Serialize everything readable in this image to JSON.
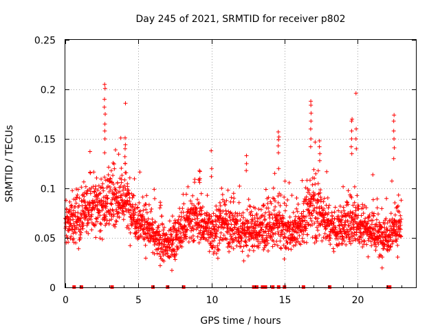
{
  "chart_data": {
    "type": "scatter",
    "title": "Day 245 of 2021, SRMTID for receiver p802",
    "xlabel": "GPS time / hours",
    "ylabel": "SRMTID / TECUs",
    "xlim": [
      0,
      24
    ],
    "ylim": [
      0,
      0.25
    ],
    "xticks": [
      0,
      5,
      10,
      15,
      20
    ],
    "xtick_labels": [
      "0",
      "5",
      "10",
      "15",
      "20"
    ],
    "yticks": [
      0,
      0.05,
      0.1,
      0.15,
      0.2,
      0.25
    ],
    "ytick_labels": [
      "0",
      "0.05",
      "0.1",
      "0.15",
      "0.2",
      "0.25"
    ],
    "grid": true,
    "marker": "plus",
    "series_color": "#ff0000",
    "x_range_of_points": [
      0,
      23
    ],
    "density_profile": [
      [
        0.0,
        0.065,
        0.017
      ],
      [
        1.0,
        0.07,
        0.017
      ],
      [
        1.5,
        0.077,
        0.016
      ],
      [
        2.0,
        0.083,
        0.018
      ],
      [
        2.5,
        0.085,
        0.02
      ],
      [
        3.0,
        0.087,
        0.022
      ],
      [
        3.5,
        0.09,
        0.018
      ],
      [
        4.0,
        0.09,
        0.02
      ],
      [
        4.5,
        0.08,
        0.018
      ],
      [
        5.0,
        0.068,
        0.016
      ],
      [
        5.5,
        0.062,
        0.016
      ],
      [
        6.0,
        0.052,
        0.014
      ],
      [
        6.5,
        0.045,
        0.013
      ],
      [
        7.0,
        0.042,
        0.012
      ],
      [
        7.5,
        0.05,
        0.014
      ],
      [
        8.0,
        0.058,
        0.016
      ],
      [
        8.5,
        0.065,
        0.016
      ],
      [
        9.0,
        0.07,
        0.016
      ],
      [
        9.5,
        0.062,
        0.015
      ],
      [
        10.0,
        0.058,
        0.016
      ],
      [
        10.5,
        0.06,
        0.016
      ],
      [
        11.0,
        0.064,
        0.016
      ],
      [
        11.5,
        0.06,
        0.016
      ],
      [
        12.0,
        0.055,
        0.015
      ],
      [
        12.5,
        0.058,
        0.015
      ],
      [
        13.0,
        0.058,
        0.015
      ],
      [
        14.0,
        0.06,
        0.016
      ],
      [
        14.5,
        0.065,
        0.02
      ],
      [
        15.5,
        0.055,
        0.012
      ],
      [
        16.0,
        0.06,
        0.014
      ],
      [
        16.5,
        0.072,
        0.018
      ],
      [
        17.0,
        0.085,
        0.022
      ],
      [
        17.5,
        0.075,
        0.02
      ],
      [
        18.0,
        0.065,
        0.016
      ],
      [
        18.5,
        0.06,
        0.014
      ],
      [
        19.0,
        0.06,
        0.015
      ],
      [
        19.5,
        0.07,
        0.02
      ],
      [
        20.0,
        0.068,
        0.018
      ],
      [
        20.5,
        0.062,
        0.016
      ],
      [
        21.0,
        0.058,
        0.016
      ],
      [
        21.5,
        0.05,
        0.015
      ],
      [
        22.0,
        0.055,
        0.015
      ],
      [
        22.5,
        0.06,
        0.015
      ],
      [
        23.0,
        0.062,
        0.015
      ]
    ],
    "spikes": [
      {
        "x": 2.7,
        "values": [
          0.205,
          0.201,
          0.19,
          0.182,
          0.175,
          0.165,
          0.158,
          0.15,
          0.136
        ]
      },
      {
        "x": 4.1,
        "values": [
          0.186,
          0.151,
          0.144,
          0.14,
          0.132,
          0.125
        ]
      },
      {
        "x": 14.6,
        "values": [
          0.157,
          0.152,
          0.149,
          0.143,
          0.136,
          0.12
        ]
      },
      {
        "x": 16.8,
        "values": [
          0.188,
          0.184,
          0.176,
          0.168,
          0.16,
          0.15,
          0.142
        ]
      },
      {
        "x": 19.6,
        "values": [
          0.17,
          0.168,
          0.158,
          0.15,
          0.142,
          0.135
        ]
      },
      {
        "x": 19.9,
        "values": [
          0.196,
          0.16,
          0.15,
          0.14
        ]
      },
      {
        "x": 22.5,
        "values": [
          0.174,
          0.168,
          0.158,
          0.15,
          0.141,
          0.13
        ]
      },
      {
        "x": 9.2,
        "values": [
          0.118,
          0.117,
          0.11,
          0.106
        ]
      },
      {
        "x": 10.0,
        "values": [
          0.138,
          0.12,
          0.112
        ]
      },
      {
        "x": 12.4,
        "values": [
          0.133,
          0.125,
          0.118
        ]
      },
      {
        "x": 17.4,
        "values": [
          0.148,
          0.142,
          0.135,
          0.128
        ]
      }
    ],
    "data_gaps_at_zero": [
      0.6,
      1.1,
      3.2,
      6.0,
      7.0,
      8.1,
      12.9,
      13.0,
      13.1,
      13.5,
      13.7,
      14.2,
      14.6,
      15.0,
      16.3,
      18.1,
      22.1,
      22.2
    ]
  }
}
